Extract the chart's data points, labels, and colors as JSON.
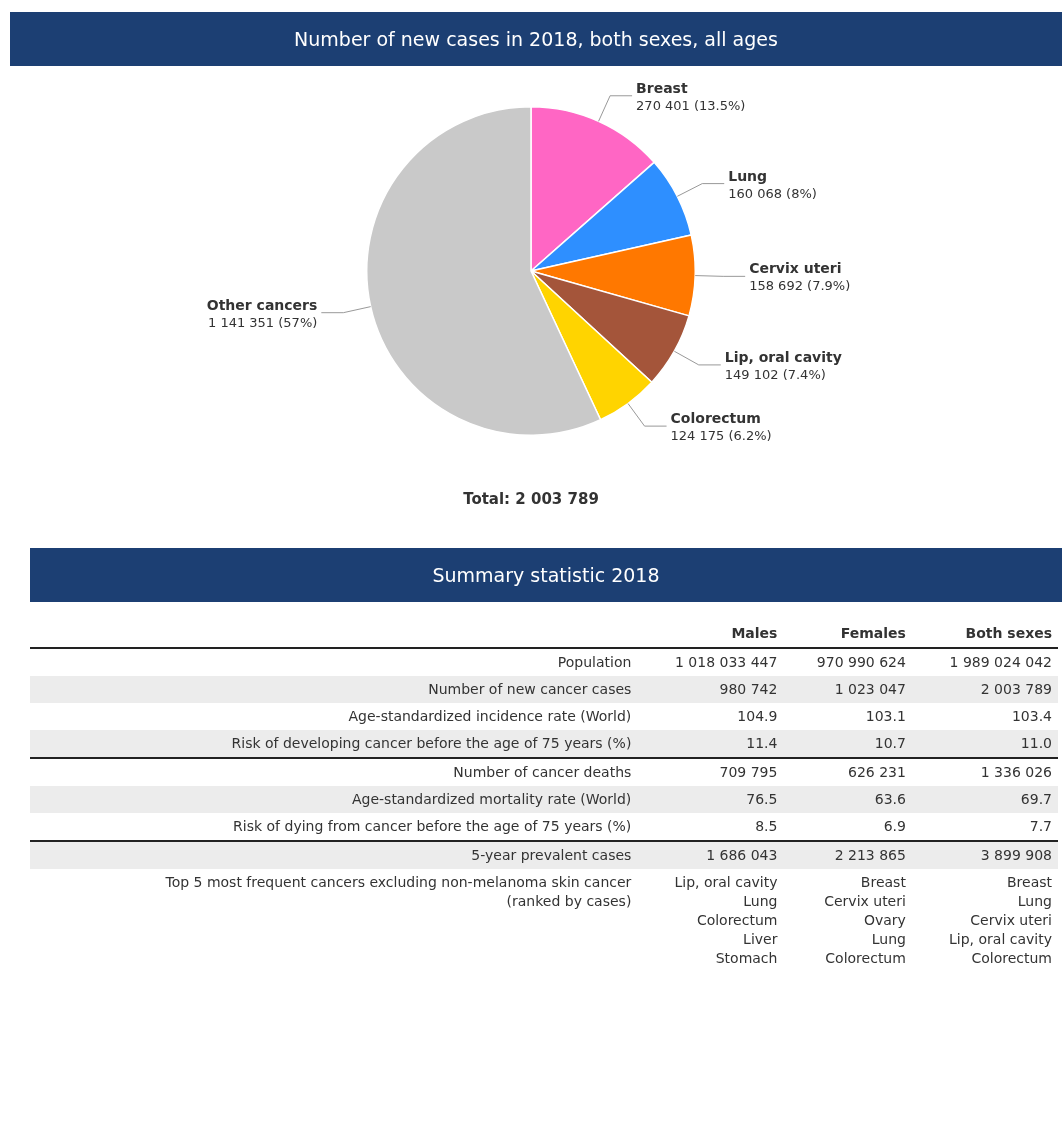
{
  "chart_data": [
    {
      "type": "pie",
      "title": "Number of new cases in 2018, both sexes, all ages",
      "categories": [
        "Breast",
        "Lung",
        "Cervix uteri",
        "Lip, oral cavity",
        "Colorectum",
        "Other cancers"
      ],
      "values": [
        270401,
        160068,
        158692,
        149102,
        124175,
        1141351
      ],
      "colors": [
        "#ff66c4",
        "#2e8fff",
        "#ff7800",
        "#a4553a",
        "#ffd400",
        "#c9c9c9"
      ],
      "value_labels": [
        "270 401 (13.5%)",
        "160 068 (8%)",
        "158 692 (7.9%)",
        "149 102 (7.4%)",
        "124 175 (6.2%)",
        "1 141 351 (57%)"
      ],
      "annotations": [
        "Total: 2 003 789"
      ]
    },
    {
      "type": "other",
      "title": "Summary statistic 2018",
      "categories": [
        "Males",
        "Females",
        "Both sexes"
      ],
      "y_categories": [
        "Population",
        "Number of new cancer cases",
        "Age-standardized incidence rate (World)",
        "Risk of developing cancer before the age of 75 years (%)",
        "Number of cancer deaths",
        "Age-standardized mortality rate (World)",
        "Risk of dying from cancer before the age of 75 years (%)",
        "5-year prevalent cases",
        "Top 5 most frequent cancers excluding non-melanoma skin cancer\n(ranked by cases)"
      ],
      "cell_labels": [
        [
          "1 018 033 447",
          "970 990 624",
          "1 989 024 042"
        ],
        [
          "980 742",
          "1 023 047",
          "2 003 789"
        ],
        [
          "104.9",
          "103.1",
          "103.4"
        ],
        [
          "11.4",
          "10.7",
          "11.0"
        ],
        [
          "709 795",
          "626 231",
          "1 336 026"
        ],
        [
          "76.5",
          "63.6",
          "69.7"
        ],
        [
          "8.5",
          "6.9",
          "7.7"
        ],
        [
          "1 686 043",
          "2 213 865",
          "3 899 908"
        ],
        [
          "Lip, oral cavity\nLung\nColorectum\nLiver\nStomach",
          "Breast\nCervix uteri\nOvary\nLung\nColorectum",
          "Breast\nLung\nCervix uteri\nLip, oral cavity\nColorectum"
        ]
      ]
    }
  ]
}
